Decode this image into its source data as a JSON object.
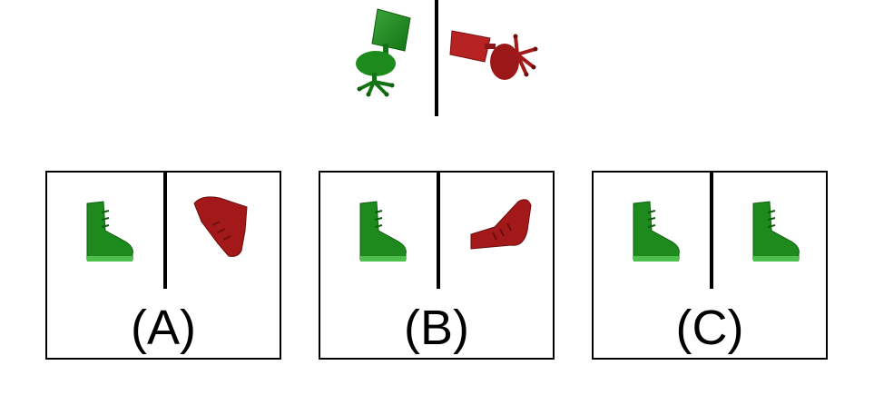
{
  "colors": {
    "green": "#1e8a1e",
    "red": "#a31818",
    "line": "#000000"
  },
  "reference": {
    "left_icon": "office-chair-icon",
    "left_color": "green",
    "right_icon": "office-chair-icon",
    "right_color": "red"
  },
  "options": [
    {
      "label": "(A)",
      "left_icon": "boot-icon",
      "left_color": "green",
      "right_icon": "boot-icon",
      "right_color": "red"
    },
    {
      "label": "(B)",
      "left_icon": "boot-icon",
      "left_color": "green",
      "right_icon": "boot-icon",
      "right_color": "red"
    },
    {
      "label": "(C)",
      "left_icon": "boot-icon",
      "left_color": "green",
      "right_icon": "boot-icon",
      "right_color": "green"
    }
  ]
}
